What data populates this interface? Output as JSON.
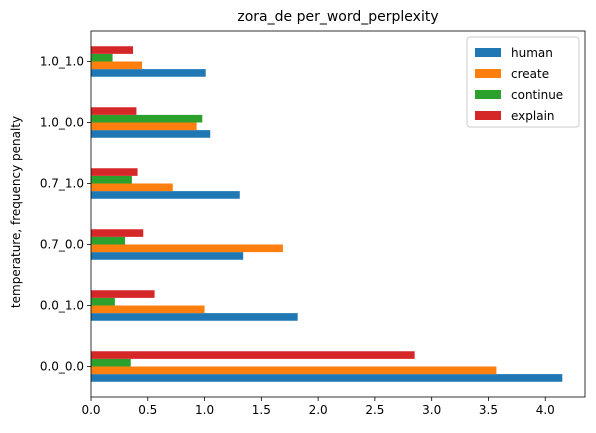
{
  "chart_data": {
    "type": "bar",
    "orientation": "horizontal",
    "title": "zora_de per_word_perplexity",
    "ylabel": "temperature, frequency penalty",
    "xlabel": "",
    "categories": [
      "0.0_0.0",
      "0.0_1.0",
      "0.7_0.0",
      "0.7_1.0",
      "1.0_0.0",
      "1.0_1.0"
    ],
    "series": [
      {
        "name": "human",
        "color": "#1f77b4",
        "values": [
          4.15,
          1.82,
          1.34,
          1.31,
          1.05,
          1.01
        ]
      },
      {
        "name": "create",
        "color": "#ff7f0e",
        "values": [
          3.57,
          1.0,
          1.69,
          0.72,
          0.93,
          0.45
        ]
      },
      {
        "name": "continue",
        "color": "#2ca02c",
        "values": [
          0.35,
          0.21,
          0.3,
          0.36,
          0.98,
          0.19
        ]
      },
      {
        "name": "explain",
        "color": "#d62728",
        "values": [
          2.85,
          0.56,
          0.46,
          0.41,
          0.4,
          0.37
        ]
      }
    ],
    "xlim": [
      0,
      4.35
    ],
    "xticks": [
      0.0,
      0.5,
      1.0,
      1.5,
      2.0,
      2.5,
      3.0,
      3.5,
      4.0
    ],
    "xtick_labels": [
      "0.0",
      "0.5",
      "1.0",
      "1.5",
      "2.0",
      "2.5",
      "3.0",
      "3.5",
      "4.0"
    ],
    "grid": false,
    "legend_position": "top-right"
  }
}
